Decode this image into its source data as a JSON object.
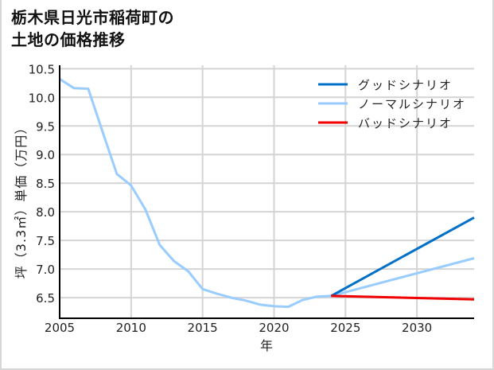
{
  "title": {
    "line1": "栃木県日光市稲荷町の",
    "line2": "土地の価格推移"
  },
  "colors": {
    "good": "#0070c8",
    "normal": "#99ccff",
    "bad": "#f00000",
    "grid": "#d4d4d4",
    "axis": "#000000",
    "frame": "#d6d6d6"
  },
  "chart_data": {
    "type": "line",
    "title": "栃木県日光市稲荷町の土地の価格推移",
    "xlabel": "年",
    "ylabel": "坪（3.3㎡）単価（万円）",
    "xlim": [
      2005,
      2034
    ],
    "ylim": [
      6.14,
      10.56
    ],
    "grid": true,
    "legend_position": "upper right",
    "x_ticks": [
      2005,
      2010,
      2015,
      2020,
      2025,
      2030
    ],
    "x_tick_labels": [
      "2005",
      "2010",
      "2015",
      "2020",
      "2025",
      "2030"
    ],
    "y_ticks": [
      6.5,
      7.0,
      7.5,
      8.0,
      8.5,
      9.0,
      9.5,
      10.0,
      10.5
    ],
    "y_tick_labels": [
      "6.5",
      "7.0",
      "7.5",
      "8.0",
      "8.5",
      "9.0",
      "9.5",
      "10.0",
      "10.5"
    ],
    "series": [
      {
        "name": "グッドシナリオ",
        "key": "good",
        "x": [
          2024,
          2034
        ],
        "values": [
          6.53,
          7.9
        ]
      },
      {
        "name": "ノーマルシナリオ",
        "key": "normal",
        "x": [
          2005,
          2006,
          2007,
          2008,
          2009,
          2010,
          2011,
          2012,
          2013,
          2014,
          2015,
          2016,
          2017,
          2018,
          2019,
          2020,
          2021,
          2022,
          2023,
          2024,
          2034
        ],
        "values": [
          10.32,
          10.16,
          10.15,
          9.4,
          8.66,
          8.46,
          8.04,
          7.42,
          7.14,
          6.96,
          6.65,
          6.57,
          6.5,
          6.45,
          6.38,
          6.35,
          6.34,
          6.46,
          6.52,
          6.53,
          7.19
        ]
      },
      {
        "name": "バッドシナリオ",
        "key": "bad",
        "x": [
          2024,
          2034
        ],
        "values": [
          6.53,
          6.47
        ]
      }
    ]
  }
}
